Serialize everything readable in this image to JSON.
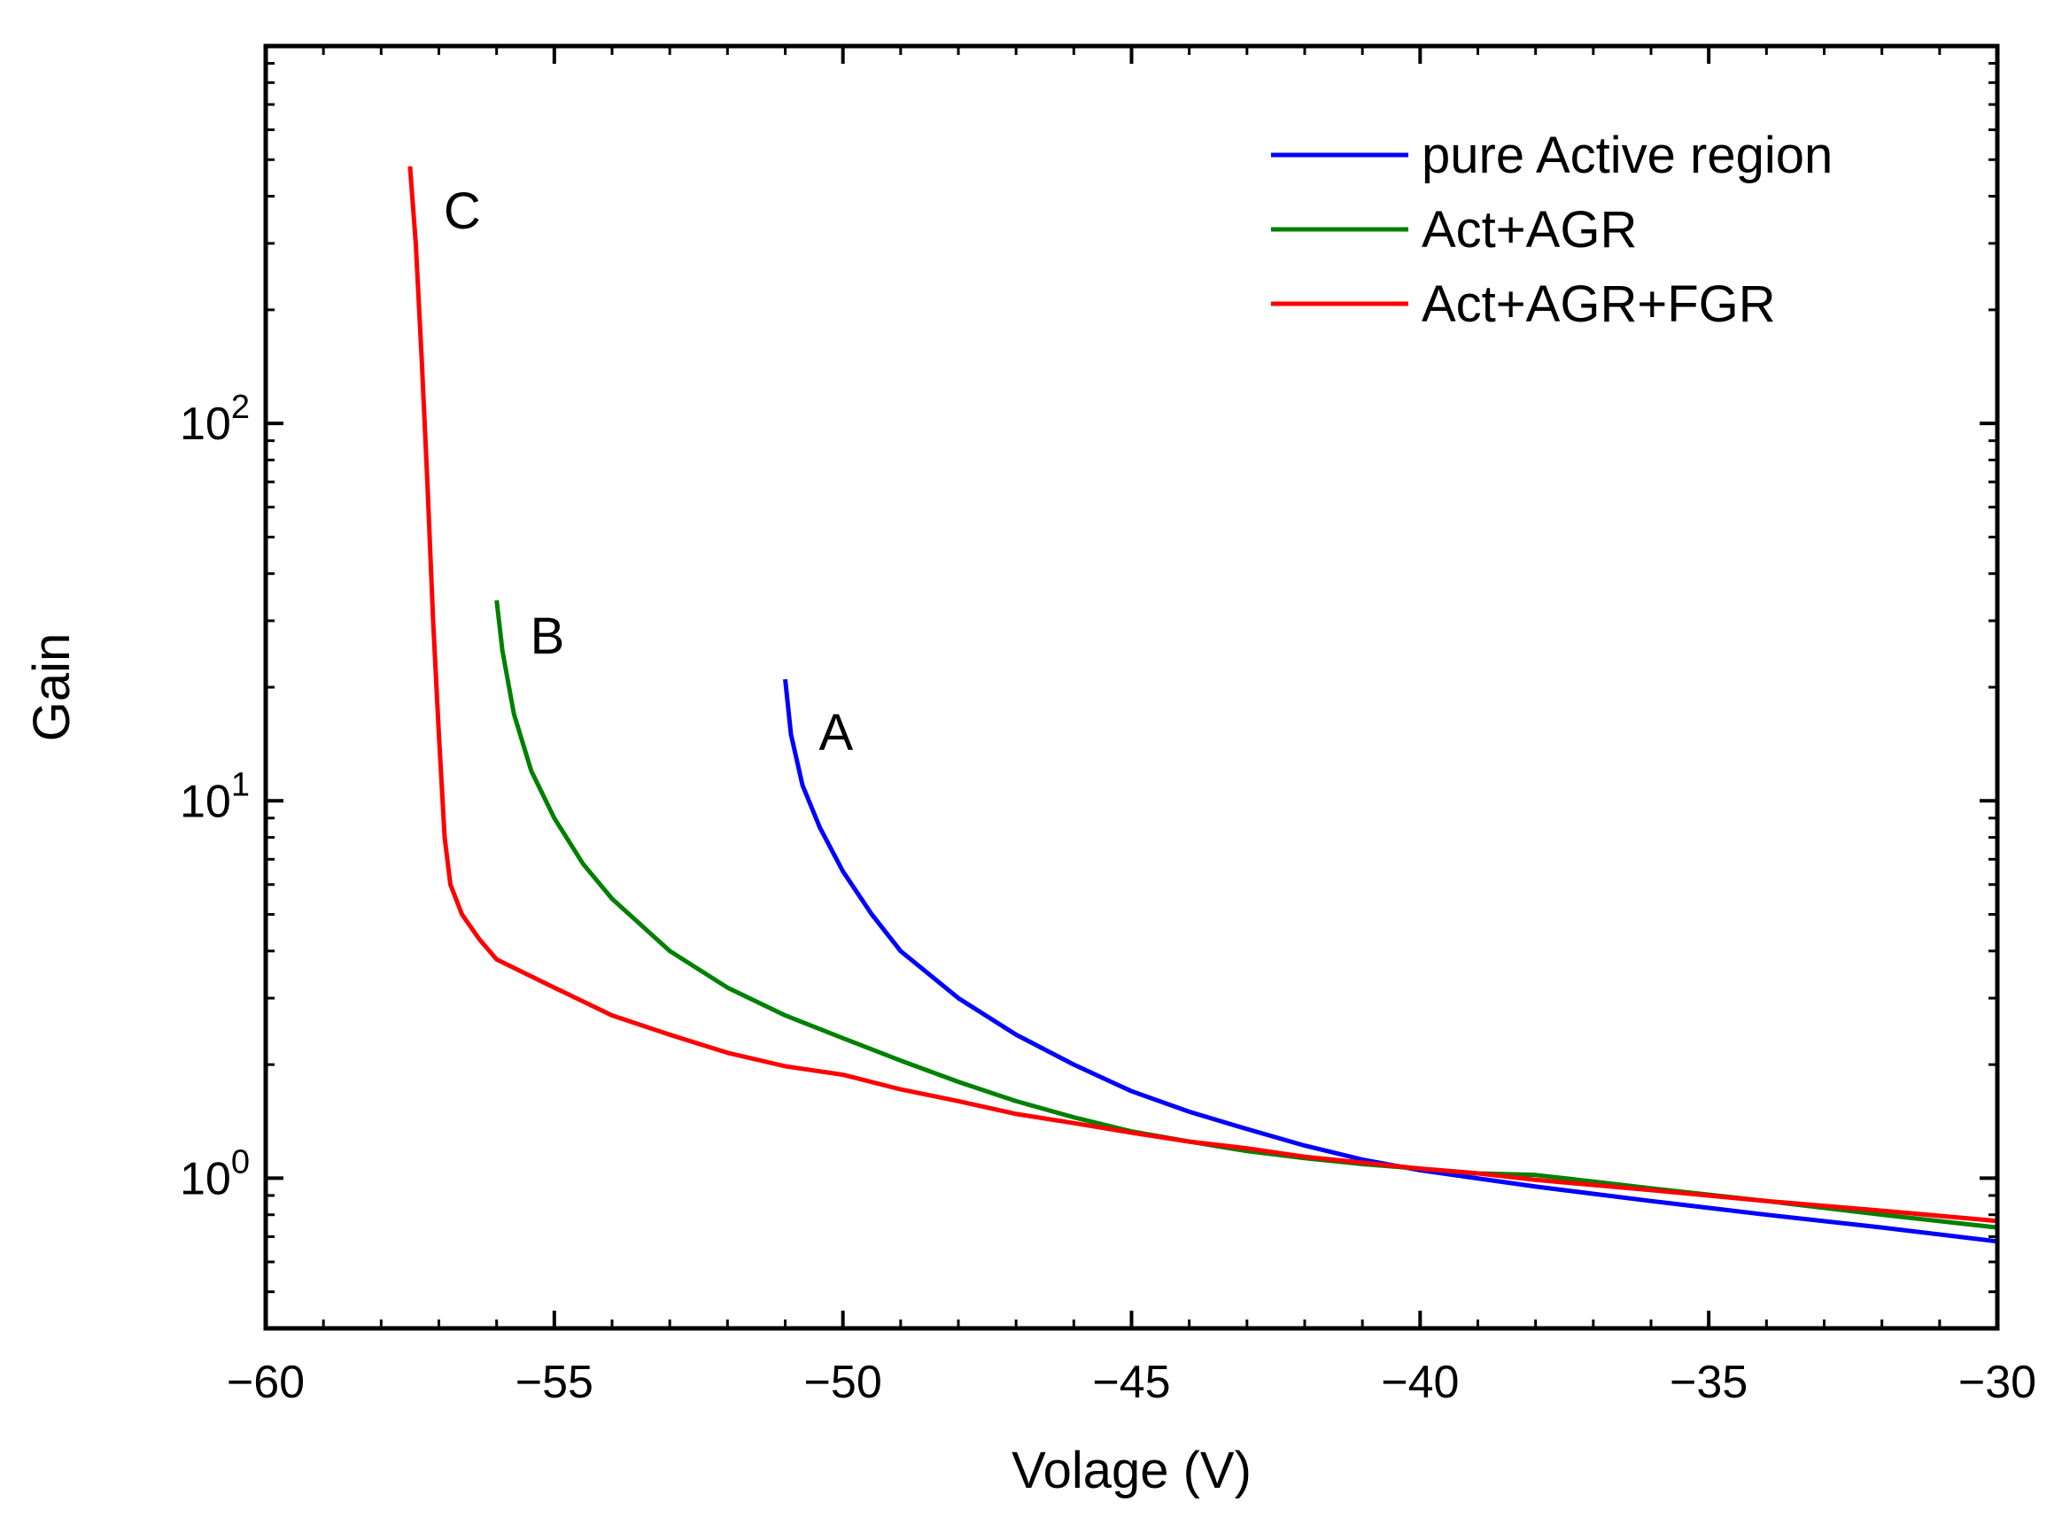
{
  "chart_data": {
    "type": "line",
    "xlabel": "Volage (V)",
    "ylabel": "Gain",
    "xlim": [
      -60,
      -30
    ],
    "ylim": [
      0.4,
      1000
    ],
    "yscale": "log",
    "x_ticks": [
      -60,
      -55,
      -50,
      -45,
      -40,
      -35,
      -30
    ],
    "x_tick_labels": [
      "−60",
      "−55",
      "−50",
      "−45",
      "−40",
      "−35",
      "−30"
    ],
    "y_ticks": [
      1,
      10,
      100
    ],
    "y_tick_labels": [
      {
        "base": "10",
        "exp": "0"
      },
      {
        "base": "10",
        "exp": "1"
      },
      {
        "base": "10",
        "exp": "2"
      }
    ],
    "legend_position": "top-right",
    "series": [
      {
        "name": "pure Active region",
        "color": "#0000ff",
        "curve_label": "A",
        "points": [
          [
            -51.0,
            21
          ],
          [
            -50.9,
            15
          ],
          [
            -50.7,
            11
          ],
          [
            -50.4,
            8.5
          ],
          [
            -50.0,
            6.5
          ],
          [
            -49.5,
            5.0
          ],
          [
            -49.0,
            4.0
          ],
          [
            -48.0,
            3.0
          ],
          [
            -47.0,
            2.4
          ],
          [
            -46.0,
            2.0
          ],
          [
            -45.0,
            1.7
          ],
          [
            -44.0,
            1.5
          ],
          [
            -43.0,
            1.35
          ],
          [
            -42.0,
            1.22
          ],
          [
            -41.0,
            1.12
          ],
          [
            -40.0,
            1.05
          ],
          [
            -38.0,
            0.95
          ],
          [
            -36.0,
            0.87
          ],
          [
            -34.0,
            0.8
          ],
          [
            -32.0,
            0.74
          ],
          [
            -30.0,
            0.68
          ]
        ]
      },
      {
        "name": "Act+AGR",
        "color": "#008000",
        "curve_label": "B",
        "points": [
          [
            -56.0,
            34
          ],
          [
            -55.9,
            25
          ],
          [
            -55.7,
            17
          ],
          [
            -55.4,
            12
          ],
          [
            -55.0,
            9.0
          ],
          [
            -54.5,
            6.8
          ],
          [
            -54.0,
            5.5
          ],
          [
            -53.0,
            4.0
          ],
          [
            -52.0,
            3.2
          ],
          [
            -51.0,
            2.7
          ],
          [
            -50.0,
            2.35
          ],
          [
            -49.0,
            2.05
          ],
          [
            -48.0,
            1.8
          ],
          [
            -47.0,
            1.6
          ],
          [
            -46.0,
            1.45
          ],
          [
            -45.0,
            1.33
          ],
          [
            -44.0,
            1.25
          ],
          [
            -43.0,
            1.18
          ],
          [
            -42.0,
            1.13
          ],
          [
            -41.0,
            1.09
          ],
          [
            -40.0,
            1.06
          ],
          [
            -39.0,
            1.03
          ],
          [
            -38.0,
            1.02
          ],
          [
            -37.0,
            0.98
          ],
          [
            -36.0,
            0.94
          ],
          [
            -34.0,
            0.87
          ],
          [
            -32.0,
            0.8
          ],
          [
            -30.0,
            0.74
          ]
        ]
      },
      {
        "name": "Act+AGR+FGR",
        "color": "#ff0000",
        "curve_label": "C",
        "points": [
          [
            -57.5,
            480
          ],
          [
            -57.4,
            300
          ],
          [
            -57.3,
            150
          ],
          [
            -57.2,
            70
          ],
          [
            -57.1,
            30
          ],
          [
            -57.0,
            15
          ],
          [
            -56.9,
            8
          ],
          [
            -56.8,
            6
          ],
          [
            -56.6,
            5
          ],
          [
            -56.3,
            4.3
          ],
          [
            -56.0,
            3.8
          ],
          [
            -55.0,
            3.2
          ],
          [
            -54.0,
            2.7
          ],
          [
            -53.0,
            2.4
          ],
          [
            -52.0,
            2.15
          ],
          [
            -51.0,
            1.98
          ],
          [
            -50.0,
            1.88
          ],
          [
            -49.0,
            1.72
          ],
          [
            -48.0,
            1.6
          ],
          [
            -47.0,
            1.48
          ],
          [
            -46.0,
            1.4
          ],
          [
            -45.0,
            1.32
          ],
          [
            -44.0,
            1.25
          ],
          [
            -43.0,
            1.2
          ],
          [
            -42.0,
            1.14
          ],
          [
            -41.0,
            1.1
          ],
          [
            -40.0,
            1.06
          ],
          [
            -39.0,
            1.03
          ],
          [
            -38.0,
            0.99
          ],
          [
            -36.0,
            0.93
          ],
          [
            -34.0,
            0.87
          ],
          [
            -32.0,
            0.82
          ],
          [
            -30.0,
            0.77
          ]
        ]
      }
    ]
  }
}
